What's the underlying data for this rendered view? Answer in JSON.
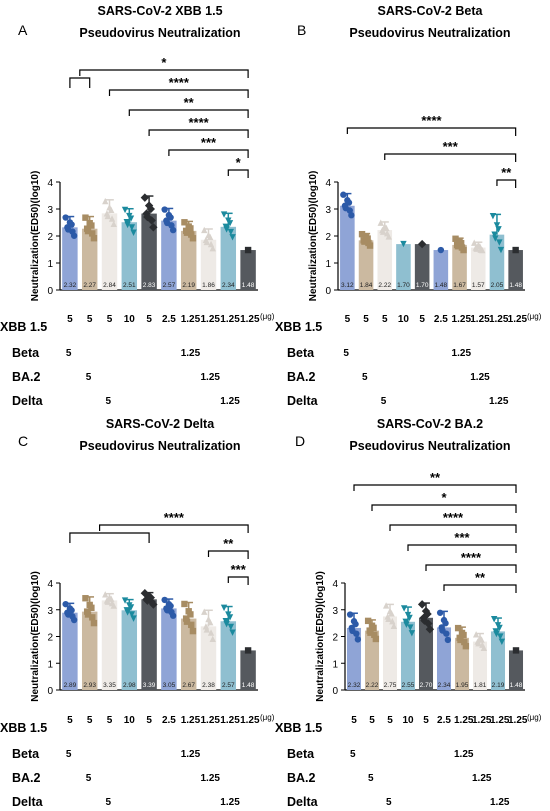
{
  "ylabel": "Neutralization(ED50)(log10)",
  "unit_label": "(μg)",
  "row_labels": [
    "XBB 1.5",
    "Beta",
    "BA.2",
    "Delta"
  ],
  "colors": [
    "#8fa4d6",
    "#cbb9a0",
    "#eeeae6",
    "#8fbfd0",
    "#55595e",
    "#8fa4d6",
    "#cbb9a0",
    "#eeeae6",
    "#8fbfd0",
    "#55595e"
  ],
  "point_colors": [
    "#2c5aa8",
    "#a78c63",
    "#d8d2cc",
    "#1b8a9e",
    "#2b2d30",
    "#2c5aa8",
    "#a78c63",
    "#d8d2cc",
    "#1b8a9e",
    "#2b2d30"
  ],
  "marker_shapes": [
    "circle",
    "square",
    "triangle",
    "triangle-down",
    "diamond",
    "circle",
    "square",
    "triangle",
    "triangle-down",
    "square"
  ],
  "doses": {
    "xbb": [
      "5",
      "5",
      "5",
      "10",
      "5",
      "2.5",
      "1.25",
      "1.25",
      "1.25",
      "1.25"
    ],
    "beta": "5",
    "beta_split": "1.25",
    "ba2": "5",
    "ba2_split": "1.25",
    "delta": "5",
    "delta_split": "1.25"
  },
  "chart_data": [
    {
      "panel": "A",
      "type": "bar",
      "title": "SARS-CoV-2 XBB 1.5",
      "subtitle": "Pseudovirus Neutralization",
      "ylabel": "Neutralization(ED50)(log10)",
      "ylim": [
        0,
        4
      ],
      "yticks": [
        0,
        1,
        2,
        3,
        4
      ],
      "values": [
        2.32,
        2.27,
        2.84,
        2.51,
        2.83,
        2.57,
        2.19,
        1.86,
        2.34,
        1.48
      ],
      "value_labels": [
        "2.32",
        "2.27",
        "2.84",
        "2.51",
        "2.83",
        "2.57",
        "2.19",
        "1.86",
        "2.34",
        "1.48"
      ],
      "errors": [
        0.4,
        0.45,
        0.5,
        0.5,
        0.65,
        0.45,
        0.35,
        0.4,
        0.5,
        0
      ],
      "significance": [
        {
          "from": 0.5,
          "to": 9,
          "label": "*"
        },
        {
          "from": 2,
          "to": 9,
          "label": "****"
        },
        {
          "from": 3,
          "to": 9,
          "label": "**"
        },
        {
          "from": 4,
          "to": 9,
          "label": "****"
        },
        {
          "from": 5,
          "to": 9,
          "label": "***"
        },
        {
          "from": 8,
          "to": 9,
          "label": "*"
        }
      ]
    },
    {
      "panel": "B",
      "type": "bar",
      "title": "SARS-CoV-2 Beta",
      "subtitle": "Pseudovirus Neutralization",
      "ylabel": "Neutralization(ED50)(log10)",
      "ylim": [
        0,
        4
      ],
      "yticks": [
        0,
        1,
        2,
        3,
        4
      ],
      "values": [
        3.12,
        1.84,
        2.22,
        1.7,
        1.7,
        1.48,
        1.67,
        1.57,
        2.05,
        1.48
      ],
      "value_labels": [
        "3.12",
        "1.84",
        "2.22",
        "1.70",
        "1.70",
        "1.48",
        "1.67",
        "1.57",
        "2.05",
        "1.48"
      ],
      "errors": [
        0.45,
        0.25,
        0.3,
        0,
        0,
        0,
        0.25,
        0.2,
        0.75,
        0
      ],
      "significance": [
        {
          "from": 0,
          "to": 9,
          "label": "****"
        },
        {
          "from": 2,
          "to": 9,
          "label": "***"
        },
        {
          "from": 8,
          "to": 9,
          "label": "**"
        }
      ]
    },
    {
      "panel": "C",
      "type": "bar",
      "title": "SARS-CoV-2 Delta",
      "subtitle": "Pseudovirus Neutralization",
      "ylabel": "Neutralization(ED50)(log10)",
      "ylim": [
        0,
        4
      ],
      "yticks": [
        0,
        1,
        2,
        3,
        4
      ],
      "values": [
        2.89,
        2.93,
        3.35,
        2.98,
        3.39,
        3.05,
        2.67,
        2.38,
        2.57,
        1.48
      ],
      "value_labels": [
        "2.89",
        "2.93",
        "3.35",
        "2.98",
        "3.39",
        "3.05",
        "2.67",
        "2.38",
        "2.57",
        "1.48"
      ],
      "errors": [
        0.35,
        0.55,
        0.25,
        0.4,
        0.25,
        0.35,
        0.6,
        0.6,
        0.55,
        0
      ],
      "significance": [
        {
          "from": 1.5,
          "to": 9,
          "label": "****"
        },
        {
          "from": 7,
          "to": 9,
          "label": "**"
        },
        {
          "from": 8,
          "to": 9,
          "label": "***"
        }
      ]
    },
    {
      "panel": "D",
      "type": "bar",
      "title": "SARS-CoV-2 BA.2",
      "subtitle": "Pseudovirus Neutralization",
      "ylabel": "Neutralization(ED50)(log10)",
      "ylim": [
        0,
        4
      ],
      "yticks": [
        0,
        1,
        2,
        3,
        4
      ],
      "values": [
        2.32,
        2.22,
        2.75,
        2.55,
        2.7,
        2.34,
        1.95,
        1.81,
        2.19,
        1.48
      ],
      "value_labels": [
        "2.32",
        "2.22",
        "2.75",
        "2.55",
        "2.70",
        "2.34",
        "1.95",
        "1.81",
        "2.19",
        "1.48"
      ],
      "errors": [
        0.55,
        0.4,
        0.45,
        0.55,
        0.55,
        0.6,
        0.4,
        0.3,
        0.5,
        0
      ],
      "significance": [
        {
          "from": 0,
          "to": 9,
          "label": "**"
        },
        {
          "from": 1,
          "to": 9,
          "label": "*"
        },
        {
          "from": 2,
          "to": 9,
          "label": "****"
        },
        {
          "from": 3,
          "to": 9,
          "label": "***"
        },
        {
          "from": 4,
          "to": 9,
          "label": "****"
        },
        {
          "from": 5,
          "to": 9,
          "label": "**"
        }
      ]
    }
  ]
}
